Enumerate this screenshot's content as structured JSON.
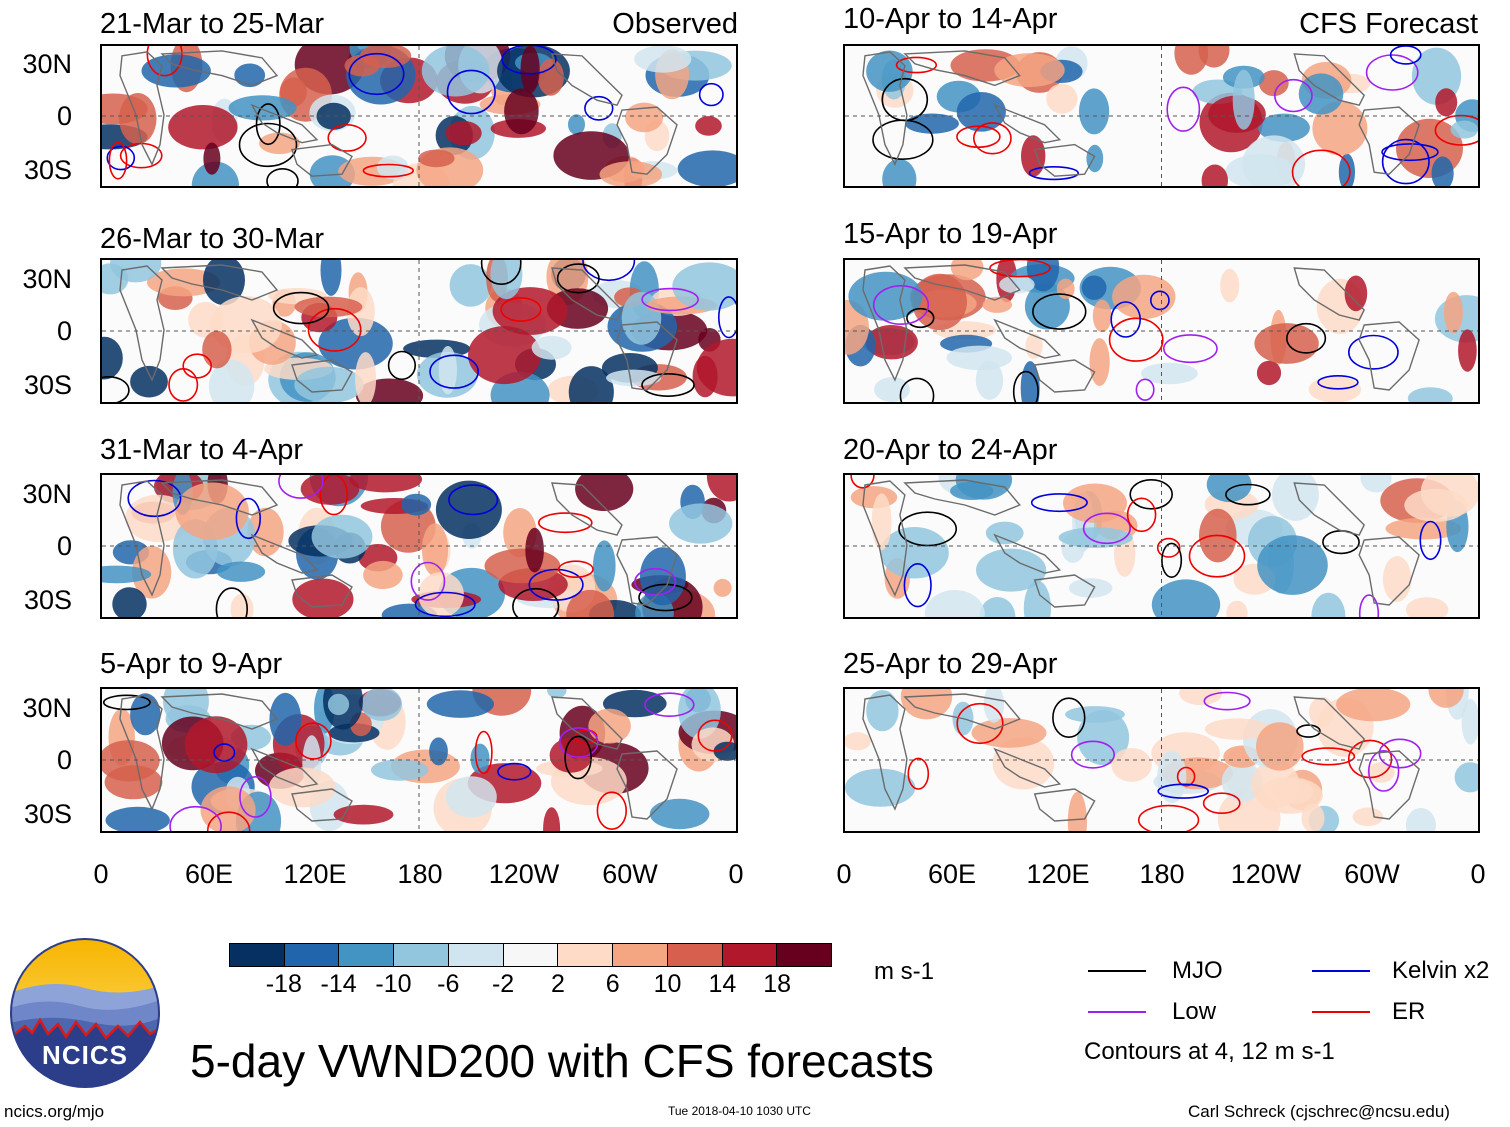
{
  "title": "5-day VWND200 with CFS forecasts",
  "columns": {
    "left_tag": "Observed",
    "right_tag": "CFS Forecast"
  },
  "panels": [
    {
      "period": "21-Mar to 25-Mar",
      "column": "observed"
    },
    {
      "period": "26-Mar to 30-Mar",
      "column": "observed"
    },
    {
      "period": "31-Mar to 4-Apr",
      "column": "observed"
    },
    {
      "period": "5-Apr to 9-Apr",
      "column": "observed"
    },
    {
      "period": "10-Apr to 14-Apr",
      "column": "forecast"
    },
    {
      "period": "15-Apr to 19-Apr",
      "column": "forecast"
    },
    {
      "period": "20-Apr to 24-Apr",
      "column": "forecast"
    },
    {
      "period": "25-Apr to 29-Apr",
      "column": "forecast"
    }
  ],
  "lat_labels": [
    "30N",
    "0",
    "30S"
  ],
  "lon_labels": [
    "0",
    "60E",
    "120E",
    "180",
    "120W",
    "60W",
    "0"
  ],
  "colorbar": {
    "units": "m s-1",
    "tick_labels": [
      "-18",
      "-14",
      "-10",
      "-6",
      "-2",
      "2",
      "6",
      "10",
      "14",
      "18"
    ],
    "colors": [
      "#053061",
      "#2166ac",
      "#4393c3",
      "#92c5de",
      "#d1e5f0",
      "#f7f7f7",
      "#fddbc7",
      "#f4a582",
      "#d6604d",
      "#b2182b",
      "#67001f"
    ]
  },
  "legend": {
    "items": [
      {
        "label": "MJO",
        "color": "#000000"
      },
      {
        "label": "Kelvin x2",
        "color": "#0000dd"
      },
      {
        "label": "Low",
        "color": "#a020f0"
      },
      {
        "label": "ER",
        "color": "#ee0000"
      }
    ],
    "note": "Contours at 4, 12 m s-1"
  },
  "logo": {
    "text": "NCICS"
  },
  "footer": {
    "left": "ncics.org/mjo",
    "center": "Tue 2018-04-10 1030 UTC",
    "right": "Carl Schreck (cjschrec@ncsu.edu)"
  }
}
